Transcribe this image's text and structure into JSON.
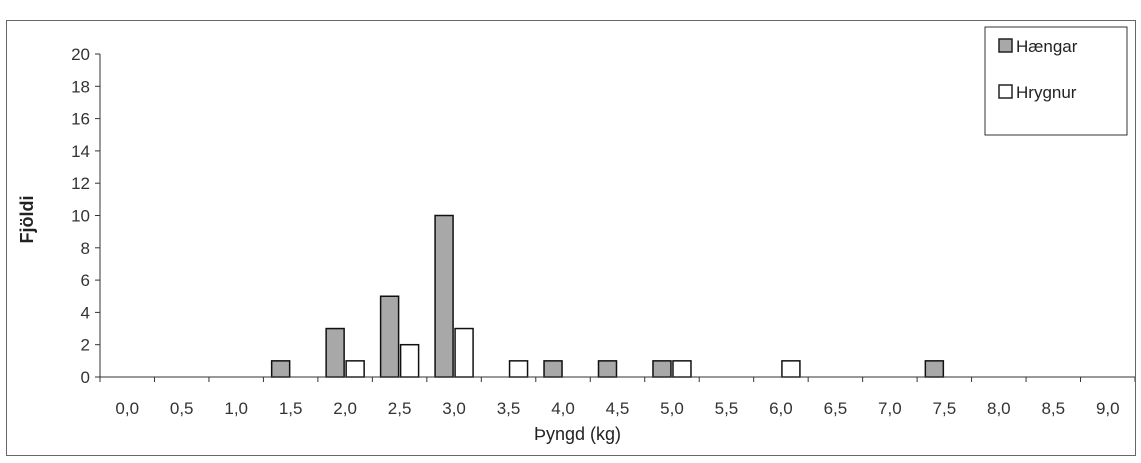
{
  "chart_data": {
    "type": "bar",
    "xlabel": "Þyngd (kg)",
    "ylabel": "Fjöldi",
    "ylim": [
      0,
      20
    ],
    "yticks": [
      0,
      2,
      4,
      6,
      8,
      10,
      12,
      14,
      16,
      18,
      20
    ],
    "categories": [
      "0,0",
      "0,5",
      "1,0",
      "1,5",
      "2,0",
      "2,5",
      "3,0",
      "3,5",
      "4,0",
      "4,5",
      "5,0",
      "5,5",
      "6,0",
      "6,5",
      "7,0",
      "7,5",
      "8,0",
      "8,5",
      "9,0"
    ],
    "series": [
      {
        "name": "Hængar",
        "color": "#a8a8a8",
        "values": [
          0,
          0,
          0,
          1,
          3,
          5,
          10,
          0,
          1,
          1,
          1,
          0,
          0,
          0,
          0,
          1,
          0,
          0,
          0
        ]
      },
      {
        "name": "Hrygnur",
        "color": "#ffffff",
        "values": [
          0,
          0,
          0,
          0,
          1,
          2,
          3,
          1,
          0,
          0,
          1,
          0,
          1,
          0,
          0,
          0,
          0,
          0,
          0
        ]
      }
    ],
    "legend_position": "top-right",
    "grid": false
  }
}
